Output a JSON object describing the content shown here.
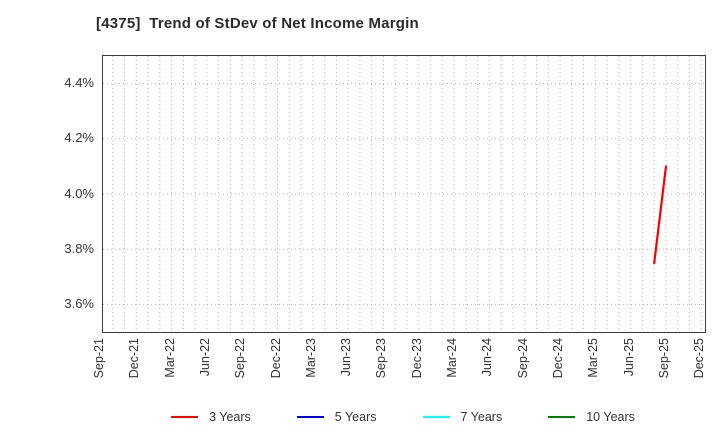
{
  "title": "[4375]  Trend of StDev of Net Income Margin",
  "chart_data": {
    "type": "line",
    "title": "[4375]  Trend of StDev of Net Income Margin",
    "x_axis": {
      "tick_labels": [
        "Sep-21",
        "Dec-21",
        "Mar-22",
        "Jun-22",
        "Sep-22",
        "Dec-22",
        "Mar-23",
        "Jun-23",
        "Sep-23",
        "Dec-23",
        "Mar-24",
        "Jun-24",
        "Sep-24",
        "Dec-24",
        "Mar-25",
        "Jun-25",
        "Sep-25",
        "Dec-25"
      ],
      "months_total": 51,
      "minor_grid": "monthly-dotted"
    },
    "y_axis": {
      "unit": "%",
      "ylim": [
        3.5,
        4.5
      ],
      "tick_values": [
        3.6,
        3.8,
        4.0,
        4.2,
        4.4
      ],
      "tick_labels": [
        "3.6%",
        "3.8%",
        "4.0%",
        "4.2%",
        "4.4%"
      ]
    },
    "grid": {
      "style": "dotted",
      "color": "#b3b3b3"
    },
    "series": [
      {
        "name": "3 Years",
        "color": "#ff0000",
        "points": [
          {
            "x_label": "Aug-25",
            "month": 47,
            "value": 3.75
          },
          {
            "x_label": "Sep-25",
            "month": 48,
            "value": 4.1
          }
        ]
      },
      {
        "name": "5 Years",
        "color": "#0000ee",
        "points": []
      },
      {
        "name": "7 Years",
        "color": "#00ffff",
        "points": []
      },
      {
        "name": "10 Years",
        "color": "#008000",
        "points": []
      }
    ],
    "legend": {
      "position": "bottom",
      "entries": [
        "3 Years",
        "5 Years",
        "7 Years",
        "10 Years"
      ]
    }
  }
}
